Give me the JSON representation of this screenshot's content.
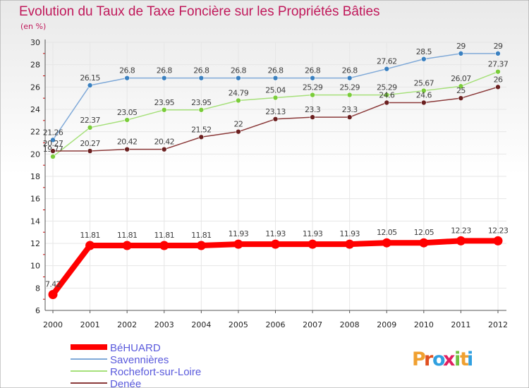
{
  "chart_data": {
    "type": "line",
    "title": "Evolution du Taux de Taxe Foncière sur les Propriétés Bâties",
    "ylabel": "(en %)",
    "xlabel": "",
    "ylim": [
      6,
      30
    ],
    "yticks": [
      6,
      8,
      10,
      12,
      14,
      16,
      18,
      20,
      22,
      24,
      26,
      28,
      30
    ],
    "categories": [
      "2000",
      "2001",
      "2002",
      "2003",
      "2004",
      "2005",
      "2006",
      "2007",
      "2008",
      "2009",
      "2010",
      "2011",
      "2012"
    ],
    "series": [
      {
        "name": "BéHUARD",
        "color": "#ff0000",
        "values": [
          7.42,
          11.81,
          11.81,
          11.81,
          11.81,
          11.93,
          11.93,
          11.93,
          11.93,
          12.05,
          12.05,
          12.23,
          12.23
        ],
        "labels": [
          "7.42",
          "11.81",
          "11.81",
          "11.81",
          "11.81",
          "11.93",
          "11.93",
          "11.93",
          "11.93",
          "12.05",
          "12.05",
          "12.23",
          "12.23"
        ]
      },
      {
        "name": "Savennières",
        "color": "#7fa9d8",
        "marker": "#3a80c0",
        "values": [
          21.26,
          26.15,
          26.8,
          26.8,
          26.8,
          26.8,
          26.8,
          26.8,
          26.8,
          27.62,
          28.5,
          29,
          29
        ],
        "labels": [
          "21.26",
          "26.15",
          "26.8",
          "26.8",
          "26.8",
          "26.8",
          "26.8",
          "26.8",
          "26.8",
          "27.62",
          "28.5",
          "29",
          "29"
        ]
      },
      {
        "name": "Rochefort-sur-Loire",
        "color": "#a6e07a",
        "marker": "#7acc3a",
        "values": [
          19.77,
          22.37,
          23.05,
          23.95,
          23.95,
          24.79,
          25.04,
          25.29,
          25.29,
          25.29,
          25.67,
          26.07,
          27.37
        ],
        "labels": [
          "19.77",
          "22.37",
          "23.05",
          "23.95",
          "23.95",
          "24.79",
          "25.04",
          "25.29",
          "25.29",
          "25.29",
          "25.67",
          "26.07",
          "27.37"
        ]
      },
      {
        "name": "Denée",
        "color": "#8b3a3a",
        "marker": "#6b2020",
        "values": [
          20.27,
          20.27,
          20.42,
          20.42,
          21.52,
          22,
          23.13,
          23.3,
          23.3,
          24.6,
          24.6,
          25,
          26
        ],
        "labels": [
          "20.27",
          "20.27",
          "20.42",
          "20.42",
          "21.52",
          "22",
          "23.13",
          "23.3",
          "23.3",
          "24.6",
          "24.6",
          "25",
          "26"
        ]
      }
    ],
    "legend_position": "bottom-left"
  },
  "brand": {
    "letters": [
      "P",
      "r",
      "o",
      "x",
      "i",
      "t",
      "i"
    ],
    "colors": [
      "#f0a030",
      "#e05020",
      "#30a0e0",
      "#e02060",
      "#70c040",
      "#f0a030",
      "#30a0e0"
    ]
  },
  "colors": {
    "title": "#c0185a",
    "text": "#404040",
    "ticks": "#222222",
    "legend_text": "#5a5adc",
    "grid": "#e6e6e6",
    "y_red": "#cc0000"
  }
}
